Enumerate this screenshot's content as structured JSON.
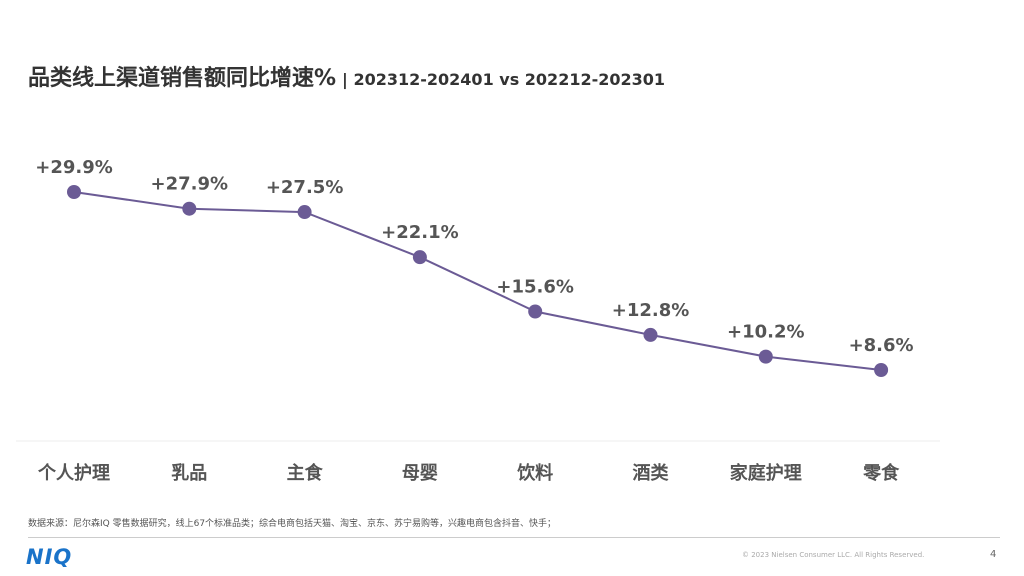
{
  "header": {
    "title": "品类线上渠道销售额同比增速%",
    "subtitle": "| 202312-202401 vs 202212-202301"
  },
  "chart_data": {
    "type": "line",
    "categories": [
      "个人护理",
      "乳品",
      "主食",
      "母婴",
      "饮料",
      "酒类",
      "家庭护理",
      "零食"
    ],
    "values": [
      29.9,
      27.9,
      27.5,
      22.1,
      15.6,
      12.8,
      10.2,
      8.6
    ],
    "data_labels": [
      "+29.9%",
      "+27.9%",
      "+27.5%",
      "+22.1%",
      "+15.6%",
      "+12.8%",
      "+10.2%",
      "+8.6%"
    ],
    "title": "品类线上渠道销售额同比增速%",
    "xlabel": "",
    "ylabel": "",
    "grid": false,
    "legend": "none",
    "color": "#6b5b95"
  },
  "footer": {
    "source_note": "数据来源：尼尔森IQ 零售数据研究，线上67个标准品类；综合电商包括天猫、淘宝、京东、苏宁易购等，兴趣电商包含抖音、快手；",
    "logo_text": "NIQ",
    "logo_color": "#1a73c9",
    "copyright": "© 2023 Nielsen Consumer LLC. All Rights Reserved.",
    "page_number": "4"
  }
}
